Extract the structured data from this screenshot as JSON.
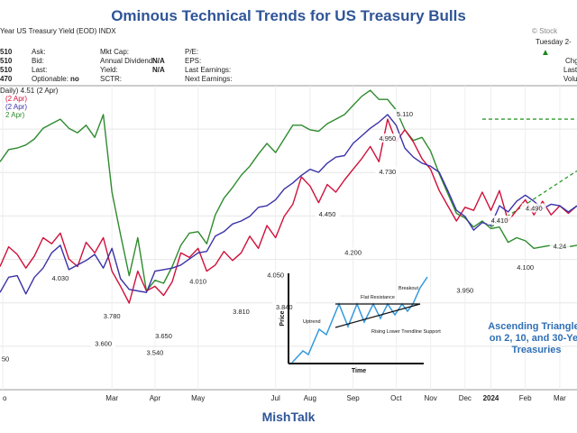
{
  "page": {
    "title": "Ominous Technical Trends for US Treasury Bulls",
    "footer": "MishTalk",
    "callout": [
      "Ascending Triangles",
      "on 2, 10, and 30-Yea",
      "Treasuries"
    ]
  },
  "header": {
    "symbol_name": "Year US Treasury Yield (EOD) INDX",
    "watermark": "© Stock",
    "date": "Tuesday 2-"
  },
  "info": {
    "left_values": [
      "510",
      "510",
      "510",
      "470"
    ],
    "col1_labels": [
      "Ask:",
      "Bid:",
      "Last:",
      "Optionable:"
    ],
    "col1_values": [
      "",
      "",
      "",
      "no"
    ],
    "col2_labels": [
      "Mkt Cap:",
      "Annual Dividend:",
      "Yield:",
      "SCTR:"
    ],
    "col2_values": [
      "",
      "N/A",
      "N/A",
      ""
    ],
    "col3_labels": [
      "P/E:",
      "EPS:",
      "Last Earnings:",
      "Next Earnings:"
    ],
    "right_labels": [
      "Chg",
      "Last",
      "Volu"
    ],
    "up_icon": "triangle-up-icon",
    "legend": [
      "Daily) 4.51 (2 Apr)",
      "(2 Apr)",
      "(2 Apr)",
      "2 Apr)"
    ]
  },
  "colors": {
    "ten_year": "#d0103a",
    "two_year": "#3a32a8",
    "thirty_year": "#2e8b2e",
    "title": "#2f5597",
    "trend": "#2e9a2e"
  },
  "chart_data": {
    "type": "line",
    "x": [
      "Jan 2023",
      "Jan 2023",
      "Jan 2023",
      "Jan 2023",
      "Jan 2023",
      "Jan 2023",
      "Feb",
      "Feb",
      "Feb",
      "Feb",
      "Mar",
      "Mar",
      "Mar",
      "Mar",
      "Mar",
      "Mar",
      "Apr",
      "Apr",
      "Apr",
      "Apr",
      "Apr",
      "May",
      "May",
      "May",
      "May",
      "Jun",
      "Jun",
      "Jun",
      "Jun",
      "Jul",
      "Jul",
      "Jul",
      "Jul",
      "Aug",
      "Aug",
      "Aug",
      "Aug",
      "Aug",
      "Sep",
      "Sep",
      "Sep",
      "Sep",
      "Oct",
      "Oct",
      "Oct",
      "Oct",
      "Oct",
      "Nov",
      "Nov",
      "Nov",
      "Nov",
      "Dec",
      "Dec",
      "Dec",
      "Dec",
      "Jan 2024",
      "Jan 2024",
      "Jan 2024",
      "Jan 2024",
      "Feb",
      "Feb",
      "Feb",
      "Feb",
      "Mar",
      "Mar",
      "Mar",
      "Mar",
      "Apr"
    ],
    "series": [
      {
        "values": [
          4.11,
          4.24,
          4.19,
          4.1,
          4.18,
          4.3,
          4.26,
          4.33,
          4.16,
          4.11,
          4.27,
          4.2,
          4.3,
          4.08,
          3.98,
          3.87,
          4.08,
          3.95,
          3.98,
          3.92,
          4.01,
          4.2,
          4.17,
          4.23,
          4.08,
          4.12,
          4.21,
          4.15,
          4.2,
          4.31,
          4.23,
          4.38,
          4.3,
          4.44,
          4.52,
          4.7,
          4.64,
          4.53,
          4.65,
          4.6,
          4.68,
          4.75,
          4.82,
          4.9,
          4.8,
          5.08,
          4.93,
          5.01,
          4.93,
          4.82,
          4.75,
          4.61,
          4.51,
          4.41,
          4.5,
          4.48,
          4.6,
          4.48,
          4.61,
          4.41,
          4.48,
          4.55,
          4.45,
          4.54,
          4.45,
          4.51,
          4.46,
          4.51
        ]
      },
      {
        "values": [
          4.8,
          4.88,
          4.89,
          4.91,
          4.95,
          5.02,
          5.05,
          5.08,
          5.02,
          4.99,
          5.04,
          4.96,
          5.11,
          4.6,
          4.32,
          4.05,
          4.3,
          3.95,
          4.02,
          4.0,
          4.11,
          4.25,
          4.33,
          4.34,
          4.26,
          4.45,
          4.56,
          4.63,
          4.71,
          4.77,
          4.85,
          4.92,
          4.86,
          4.95,
          5.04,
          5.04,
          5.01,
          5.0,
          5.05,
          5.08,
          5.11,
          5.17,
          5.23,
          5.27,
          5.21,
          5.21,
          5.14,
          5.01,
          4.94,
          4.96,
          4.87,
          4.72,
          4.59,
          4.46,
          4.43,
          4.37,
          4.41,
          4.36,
          4.37,
          4.27,
          4.3,
          4.28,
          4.23,
          4.24,
          4.25,
          4.23,
          4.24,
          4.25
        ]
      },
      {
        "values": [
          3.94,
          4.04,
          4.05,
          3.93,
          4.04,
          4.1,
          4.2,
          4.25,
          4.09,
          4.12,
          4.15,
          4.19,
          4.1,
          4.23,
          4.03,
          3.96,
          3.95,
          3.94,
          4.08,
          4.09,
          4.1,
          4.12,
          4.16,
          4.2,
          4.21,
          4.31,
          4.34,
          4.39,
          4.41,
          4.44,
          4.5,
          4.51,
          4.55,
          4.62,
          4.66,
          4.71,
          4.75,
          4.73,
          4.79,
          4.83,
          4.84,
          4.92,
          4.97,
          5.02,
          5.06,
          5.11,
          5.04,
          4.89,
          4.83,
          4.79,
          4.77,
          4.73,
          4.61,
          4.48,
          4.44,
          4.35,
          4.4,
          4.38,
          4.51,
          4.47,
          4.54,
          4.58,
          4.54,
          4.49,
          4.52,
          4.51,
          4.47,
          4.51
        ]
      }
    ],
    "annotations": [
      {
        "label": "4.030",
        "x": "Feb",
        "y": 4.03
      },
      {
        "label": "3.780",
        "x": "Mar",
        "y": 3.78
      },
      {
        "label": "3.600",
        "x": "Mar",
        "y": 3.6
      },
      {
        "label": "3.540",
        "x": "Apr",
        "y": 3.54
      },
      {
        "label": "3.650",
        "x": "Apr",
        "y": 3.65
      },
      {
        "label": "4.010",
        "x": "May",
        "y": 4.01
      },
      {
        "label": "3.810",
        "x": "Jun",
        "y": 3.81
      },
      {
        "label": "4.050",
        "x": "Jul",
        "y": 4.05
      },
      {
        "label": "3.840",
        "x": "Jul",
        "y": 3.84
      },
      {
        "label": "4.450",
        "x": "Aug",
        "y": 4.45
      },
      {
        "label": "4.200",
        "x": "Sep",
        "y": 4.2
      },
      {
        "label": "4.950",
        "x": "Oct",
        "y": 4.95
      },
      {
        "label": "4.730",
        "x": "Oct",
        "y": 4.73
      },
      {
        "label": "5.110",
        "x": "Oct",
        "y": 5.11
      },
      {
        "label": "3.950",
        "x": "Dec",
        "y": 3.95
      },
      {
        "label": "4.410",
        "x": "Jan 2024",
        "y": 4.41
      },
      {
        "label": "4.100",
        "x": "Feb",
        "y": 4.1
      },
      {
        "label": "4.490",
        "x": "Feb",
        "y": 4.49
      },
      {
        "label": "4.24",
        "x": "Mar",
        "y": 4.24
      },
      {
        "label": "50",
        "x": "Jan 2023",
        "y": 3.5
      }
    ],
    "xaxis_ticks": [
      "o",
      "Mar",
      "Apr",
      "May",
      "Jul",
      "Aug",
      "Sep",
      "Oct",
      "Nov",
      "Dec",
      "2024",
      "Feb",
      "Mar"
    ],
    "inset": {
      "ylabel": "Price",
      "xlabel": "Time",
      "labels": [
        "Uptrend",
        "Flat Resistance",
        "Breakout",
        "Rising Lower Trendline Support"
      ]
    }
  }
}
